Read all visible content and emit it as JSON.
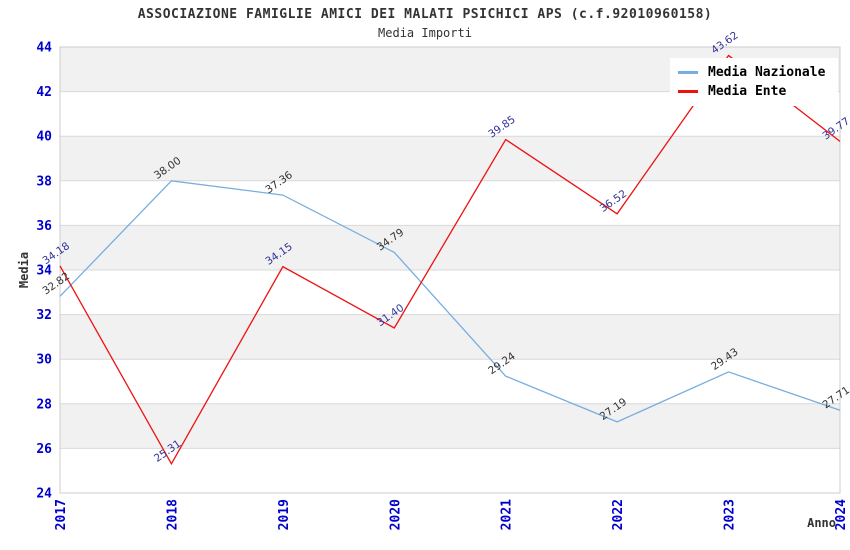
{
  "header": {
    "title": "ASSOCIAZIONE FAMIGLIE AMICI DEI MALATI PSICHICI APS (c.f.92010960158)",
    "subtitle": "Media Importi"
  },
  "legend": {
    "items": [
      {
        "label": "Media Nazionale",
        "color": "#77AEE0"
      },
      {
        "label": "Media Ente",
        "color": "#EE1111"
      }
    ]
  },
  "axes": {
    "y_title": "Media",
    "x_title": "Anno",
    "tick_color": "#0000CC",
    "y_ticks": [
      "24",
      "26",
      "28",
      "30",
      "32",
      "34",
      "36",
      "38",
      "40",
      "42",
      "44"
    ],
    "x_ticks": [
      "2017",
      "2018",
      "2019",
      "2020",
      "2021",
      "2022",
      "2023",
      "2024"
    ]
  },
  "chart_data": {
    "type": "line",
    "title": "ASSOCIAZIONE FAMIGLIE AMICI DEI MALATI PSICHICI APS (c.f.92010960158)",
    "subtitle": "Media Importi",
    "xlabel": "Anno",
    "ylabel": "Media",
    "categories": [
      "2017",
      "2018",
      "2019",
      "2020",
      "2021",
      "2022",
      "2023",
      "2024"
    ],
    "series": [
      {
        "name": "Media Nazionale",
        "color": "#77AEE0",
        "label_color": "#333333",
        "values": [
          32.82,
          38.0,
          37.36,
          34.79,
          29.24,
          27.19,
          29.43,
          27.71
        ]
      },
      {
        "name": "Media Ente",
        "color": "#EE1111",
        "label_color": "#333399",
        "values": [
          34.18,
          25.31,
          34.15,
          31.4,
          39.85,
          36.52,
          43.62,
          39.77
        ]
      }
    ],
    "ylim": [
      24,
      44
    ],
    "ytick_step": 2,
    "grid": true,
    "band_colors": [
      "#FFFFFF",
      "#F1F1F1"
    ],
    "gridline_color": "#D9D9D9",
    "border_color": "#CCCCCC",
    "tick_color": "#0000CC",
    "legend_position": "top-right",
    "value_label_decimals": 2,
    "value_label_rotation": -35
  }
}
